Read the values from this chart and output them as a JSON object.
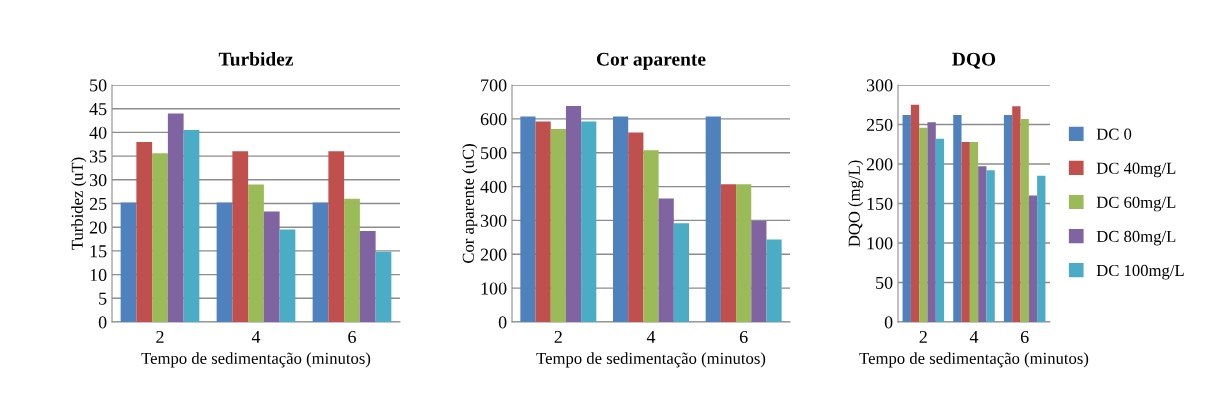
{
  "chart_data": [
    {
      "type": "bar",
      "title": "Turbidez",
      "xlabel": "Tempo de sedimentação (minutos)",
      "ylabel": "Turbidez (uT)",
      "categories": [
        "2",
        "4",
        "6"
      ],
      "ylim": [
        0,
        50
      ],
      "yticks": [
        0,
        5,
        10,
        15,
        20,
        25,
        30,
        35,
        40,
        45,
        50
      ],
      "grid": "y",
      "legend": false,
      "series": [
        {
          "color": "#4f81bd",
          "values": [
            25.2,
            25.2,
            25.2
          ]
        },
        {
          "color": "#c0504d",
          "values": [
            38,
            36,
            36
          ]
        },
        {
          "color": "#9bbb59",
          "values": [
            35.6,
            29,
            26
          ]
        },
        {
          "color": "#8064a2",
          "values": [
            44,
            23.3,
            19.2
          ]
        },
        {
          "color": "#4bacc6",
          "values": [
            40.5,
            19.5,
            14.8
          ]
        }
      ]
    },
    {
      "type": "bar",
      "title": "Cor aparente",
      "xlabel": "Tempo de sedimentação (minutos)",
      "ylabel": "Cor aparente (uC)",
      "categories": [
        "2",
        "4",
        "6"
      ],
      "ylim": [
        0,
        700
      ],
      "yticks": [
        0,
        100,
        200,
        300,
        400,
        500,
        600,
        700
      ],
      "grid": "y",
      "legend": false,
      "series": [
        {
          "color": "#4f81bd",
          "values": [
            607,
            607,
            607
          ]
        },
        {
          "color": "#c0504d",
          "values": [
            592,
            560,
            407
          ]
        },
        {
          "color": "#9bbb59",
          "values": [
            570,
            507,
            407
          ]
        },
        {
          "color": "#8064a2",
          "values": [
            638,
            365,
            298
          ]
        },
        {
          "color": "#4bacc6",
          "values": [
            592,
            292,
            244
          ]
        }
      ]
    },
    {
      "type": "bar",
      "title": "DQO",
      "xlabel": "Tempo de sedimentação (minutos)",
      "ylabel": "DQO (mg/L)",
      "categories": [
        "2",
        "4",
        "6"
      ],
      "ylim": [
        0,
        300
      ],
      "yticks": [
        0,
        50,
        100,
        150,
        200,
        250,
        300
      ],
      "grid": "y",
      "legend": "right",
      "series": [
        {
          "name": "DC 0",
          "color": "#4f81bd",
          "values": [
            262,
            262,
            262
          ]
        },
        {
          "name": "DC 40mg/L",
          "color": "#c0504d",
          "values": [
            275,
            228,
            273
          ]
        },
        {
          "name": "DC 60mg/L",
          "color": "#9bbb59",
          "values": [
            246,
            228,
            257
          ]
        },
        {
          "name": "DC 80mg/L",
          "color": "#8064a2",
          "values": [
            253,
            197,
            160
          ]
        },
        {
          "name": "DC 100mg/L",
          "color": "#4bacc6",
          "values": [
            232,
            192,
            185
          ]
        }
      ]
    }
  ]
}
